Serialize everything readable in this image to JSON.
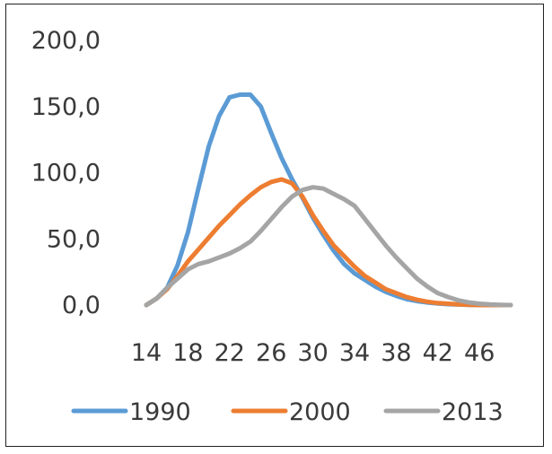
{
  "chart_data": {
    "type": "line",
    "title": "",
    "xlabel": "",
    "ylabel": "",
    "ylim": [
      0,
      200
    ],
    "y_ticks": [
      "0,0",
      "50,0",
      "100,0",
      "150,0",
      "200,0"
    ],
    "y_tick_values": [
      0,
      50,
      100,
      150,
      200
    ],
    "x_ticks": [
      "14",
      "18",
      "22",
      "26",
      "30",
      "34",
      "38",
      "42",
      "46"
    ],
    "x_tick_values": [
      14,
      18,
      22,
      26,
      30,
      34,
      38,
      42,
      46
    ],
    "xlim": [
      14,
      49
    ],
    "grid": false,
    "legend_position": "bottom",
    "series": [
      {
        "name": "1990",
        "color": "#5b9bd5",
        "x": [
          14,
          15,
          16,
          17,
          18,
          19,
          20,
          21,
          22,
          23,
          24,
          25,
          26,
          27,
          28,
          29,
          30,
          31,
          32,
          33,
          34,
          35,
          36,
          37,
          38,
          39,
          40,
          41,
          42,
          43,
          44,
          45,
          46,
          47,
          48,
          49
        ],
        "values": [
          0,
          5,
          13,
          30,
          55,
          88,
          120,
          143,
          157,
          159,
          159,
          150,
          130,
          111,
          95,
          81,
          66,
          53,
          41,
          31,
          24,
          19,
          14,
          10,
          7,
          4.5,
          3,
          2,
          1.2,
          0.7,
          0.4,
          0.2,
          0.1,
          0,
          0,
          0
        ]
      },
      {
        "name": "2000",
        "color": "#ed7d31",
        "x": [
          14,
          15,
          16,
          17,
          18,
          19,
          20,
          21,
          22,
          23,
          24,
          25,
          26,
          27,
          28,
          29,
          30,
          31,
          32,
          33,
          34,
          35,
          36,
          37,
          38,
          39,
          40,
          41,
          42,
          43,
          44,
          45,
          46,
          47,
          48,
          49
        ],
        "values": [
          0,
          5,
          12,
          22,
          33,
          42,
          51,
          60,
          68,
          76,
          83,
          89,
          93,
          95,
          92,
          82,
          68,
          56,
          45,
          37,
          29,
          22,
          17,
          12,
          9,
          6,
          4,
          2.5,
          1.5,
          1,
          0.5,
          0.2,
          0,
          0,
          0,
          0
        ]
      },
      {
        "name": "2013",
        "color": "#a5a5a5",
        "x": [
          14,
          15,
          16,
          17,
          18,
          19,
          20,
          21,
          22,
          23,
          24,
          25,
          26,
          27,
          28,
          29,
          30,
          31,
          32,
          33,
          34,
          35,
          36,
          37,
          38,
          39,
          40,
          41,
          42,
          43,
          44,
          45,
          46,
          47,
          48,
          49
        ],
        "values": [
          0,
          5,
          13,
          20,
          27,
          31,
          33,
          36,
          39,
          43,
          48,
          56,
          65,
          74,
          82,
          87,
          89,
          88,
          84,
          80,
          75,
          65,
          55,
          45,
          36,
          28,
          20,
          14,
          9,
          6,
          3.5,
          2,
          1,
          0.5,
          0.2,
          0
        ]
      }
    ]
  }
}
